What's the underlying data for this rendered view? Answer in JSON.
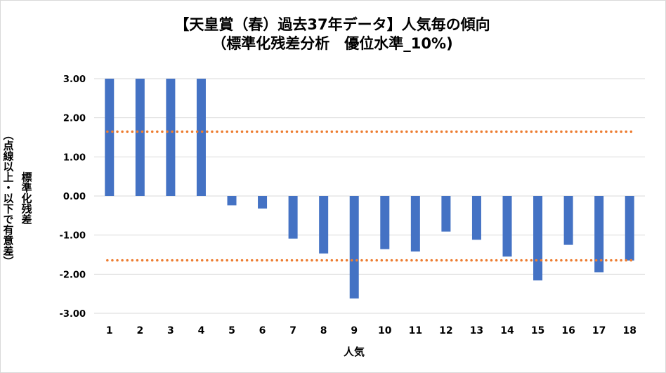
{
  "chart_data": {
    "type": "bar",
    "title_line1": "【天皇賞（春）過去37年データ】人気毎の傾向",
    "title_line2": "（標準化残差分析　優位水準_10%)",
    "ylabel": "標準化残差",
    "ylabel_note": "（点線以上・以下で有意差）",
    "xlabel": "人気",
    "categories": [
      "1",
      "2",
      "3",
      "4",
      "5",
      "6",
      "7",
      "8",
      "9",
      "10",
      "11",
      "12",
      "13",
      "14",
      "15",
      "16",
      "17",
      "18"
    ],
    "values": [
      3.0,
      3.0,
      3.0,
      3.0,
      -0.24,
      -0.32,
      -1.09,
      -1.47,
      -2.62,
      -1.36,
      -1.42,
      -0.91,
      -1.12,
      -1.55,
      -2.16,
      -1.25,
      -1.95,
      -1.65
    ],
    "ylim": [
      -3.0,
      3.0
    ],
    "yticks": [
      "3.00",
      "2.00",
      "1.00",
      "0.00",
      "-1.00",
      "-2.00",
      "-3.00"
    ],
    "threshold_upper": 1.645,
    "threshold_lower": -1.645,
    "bar_color": "#4472c4",
    "threshold_color": "#ed7d31",
    "grid_color": "#d9d9d9",
    "gridlines": true,
    "legend": "none"
  }
}
